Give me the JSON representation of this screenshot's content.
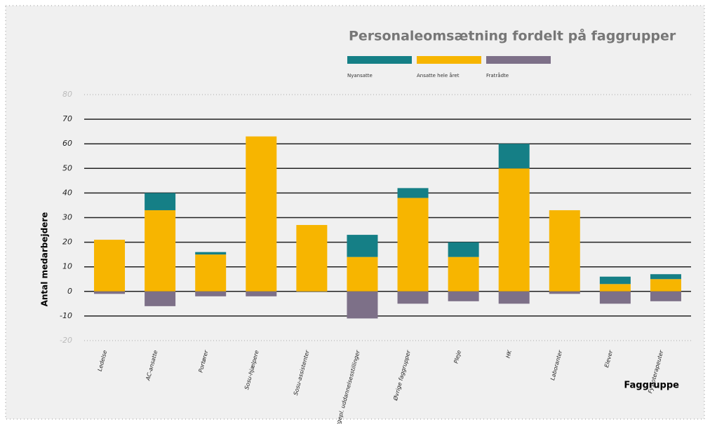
{
  "chart_data": {
    "type": "stacked-bar",
    "title": "Personaleomsætning fordelt på faggrupper",
    "y_label": "Antal medarbejdere",
    "x_label": "Faggruppe",
    "categories": [
      "Ledelse",
      "AC-ansatte",
      "Portører",
      "Sosu-hjælpere",
      "Sosu-assistenter",
      "Sygepl. uddannelsesstillinger",
      "Øvrige faggrupper",
      "Pleje",
      "HK",
      "Laboranter",
      "Elever",
      "Fysioterapeuter"
    ],
    "series": [
      {
        "name": "Nyansatte",
        "color": "#157f86",
        "values": [
          0,
          7,
          1,
          0,
          0,
          9,
          4,
          6,
          10,
          0,
          3,
          2
        ]
      },
      {
        "name": "Ansatte hele året",
        "color": "#f7b500",
        "values": [
          21,
          33,
          15,
          63,
          27,
          14,
          38,
          14,
          50,
          33,
          3,
          5
        ]
      },
      {
        "name": "Fratrådte",
        "color": "#7d7088",
        "values": [
          -1,
          -6,
          -2,
          -2,
          0,
          -11,
          -5,
          -4,
          -5,
          -1,
          -5,
          -4
        ]
      }
    ],
    "ylim": [
      -20,
      80
    ],
    "yticks": [
      -20,
      -10,
      0,
      10,
      20,
      30,
      40,
      50,
      60,
      70,
      80
    ],
    "grid": true
  }
}
